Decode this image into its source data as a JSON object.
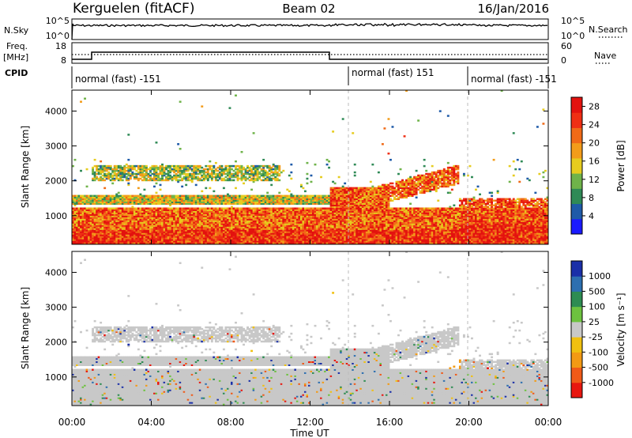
{
  "header": {
    "station": "Kerguelen (fitACF)",
    "beam": "Beam 02",
    "date": "16/Jan/2016"
  },
  "panels": {
    "nsky": {
      "label": "N.Sky",
      "left_ticks": [
        "10^5",
        "10^0"
      ],
      "right_ticks": [
        "10^5",
        "10^0"
      ],
      "right_label": "N.Search"
    },
    "freq": {
      "label_1": "Freq.",
      "label_2": "[MHz]",
      "left_ticks": [
        "18",
        "8"
      ],
      "right_ticks": [
        "60",
        "0"
      ],
      "right_label": "Nave"
    },
    "cpid": {
      "label": "CPID",
      "segments": [
        "normal (fast) -151",
        "normal (fast) 151",
        "normal (fast) -151"
      ]
    }
  },
  "chart_data": [
    {
      "type": "heatmap",
      "title": "",
      "xlabel": "Time UT",
      "ylabel": "Slant Range [km]",
      "x_ticks": [
        "00:00",
        "04:00",
        "08:00",
        "12:00",
        "16:00",
        "20:00",
        "00:00"
      ],
      "y_ticks": [
        1000,
        2000,
        3000,
        4000
      ],
      "ylim": [
        180,
        4600
      ],
      "colorbar": {
        "label": "Power [dB]",
        "ticks": [
          "4",
          "8",
          "12",
          "16",
          "20",
          "24",
          "28"
        ],
        "range": [
          0,
          30
        ]
      },
      "colors": [
        "#1a1aff",
        "#1e5aa8",
        "#2f8a56",
        "#6fb34a",
        "#e6cc1f",
        "#f39c1a",
        "#f06a17",
        "#ef2f14",
        "#e3120f"
      ],
      "features": [
        {
          "t": [
            0,
            24
          ],
          "range_km": [
            200,
            1200
          ],
          "level": "high"
        },
        {
          "t": [
            0,
            13
          ],
          "range_km": [
            1300,
            1500
          ],
          "level": "medium"
        },
        {
          "t": [
            1,
            10.5
          ],
          "range_km": [
            2000,
            2450
          ],
          "level": "medium"
        },
        {
          "t": [
            13,
            19.5
          ],
          "range_km": [
            1000,
            2200
          ],
          "level": "high"
        },
        {
          "t": [
            19.5,
            24
          ],
          "range_km": [
            700,
            1500
          ],
          "level": "high"
        }
      ]
    },
    {
      "type": "heatmap",
      "title": "",
      "xlabel": "Time UT",
      "ylabel": "Slant Range [km]",
      "x_ticks": [
        "00:00",
        "04:00",
        "08:00",
        "12:00",
        "16:00",
        "20:00",
        "00:00"
      ],
      "y_ticks": [
        1000,
        2000,
        3000,
        4000
      ],
      "ylim": [
        180,
        4600
      ],
      "colorbar": {
        "label": "Velocity [m s⁻¹]",
        "ticks": [
          "1000",
          "500",
          "100",
          "25",
          "-25",
          "-100",
          "-500",
          "-1000"
        ],
        "range": [
          -1000,
          1000
        ]
      },
      "colors": [
        "#1a2fa8",
        "#2d6fb0",
        "#2d8c52",
        "#6dc23f",
        "#c8c8c8",
        "#f0c010",
        "#f39a14",
        "#f05a18",
        "#e8160f"
      ],
      "ground_scatter_color": "#c8c8c8"
    }
  ],
  "cpid_change_times_ut": [
    14,
    20
  ]
}
